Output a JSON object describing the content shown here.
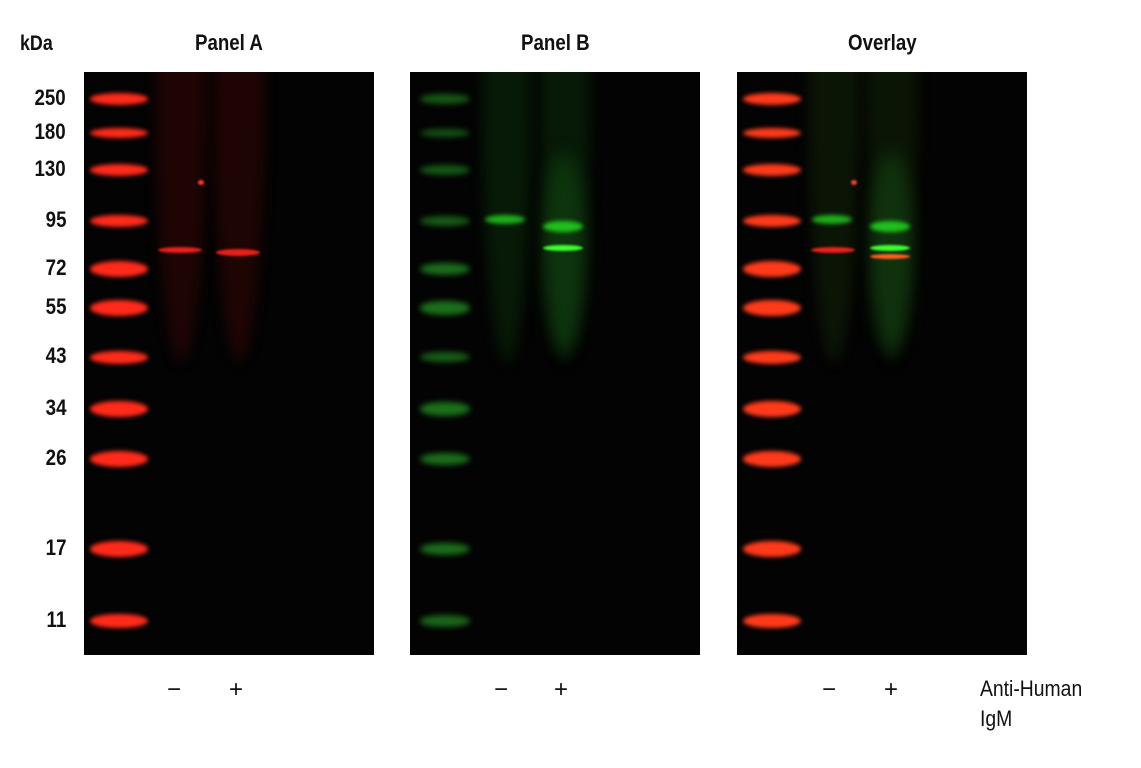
{
  "axis_label": "kDa",
  "markers": [
    "250",
    "180",
    "130",
    "95",
    "72",
    "55",
    "43",
    "34",
    "26",
    "17",
    "11"
  ],
  "panels": [
    {
      "title": "Panel A",
      "channel_color": "#ff2a1a"
    },
    {
      "title": "Panel B",
      "channel_color": "#22d01e"
    },
    {
      "title": "Overlay",
      "channel_color": "mixed"
    }
  ],
  "lanes": [
    "−",
    "+"
  ],
  "treatment_label": [
    "Anti-Human",
    "IgM"
  ]
}
